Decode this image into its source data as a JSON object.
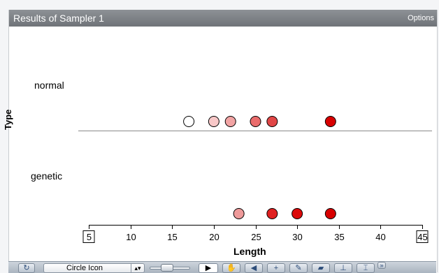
{
  "window": {
    "title": "Results of Sampler 1",
    "options_label": "Options"
  },
  "chart_data": {
    "type": "scatter",
    "xlabel": "Length",
    "ylabel": "Type",
    "categories": [
      "normal",
      "genetic"
    ],
    "xlim": [
      5,
      45
    ],
    "x_ticks": [
      5,
      10,
      15,
      20,
      25,
      30,
      35,
      40,
      45
    ],
    "grid": false,
    "series": [
      {
        "values": [
          17,
          20,
          22,
          25,
          27,
          34
        ],
        "colors": [
          "#ffffff",
          "#f8c8c8",
          "#f2a4a4",
          "#ea6c6c",
          "#e14646",
          "#d80000"
        ]
      },
      {
        "values": [
          23,
          27,
          30,
          34
        ],
        "colors": [
          "#ee9a9a",
          "#e02020",
          "#dc0a0a",
          "#d80000"
        ]
      }
    ]
  },
  "toolbar": {
    "rerandomize_icon": "rerandomize-icon",
    "selected_icon": "Circle Icon",
    "overflow_icon": "chevron-double-right-icon",
    "tools": [
      "pointer-icon",
      "hand-icon",
      "eraser-icon",
      "add-case-icon",
      "pencil-icon",
      "shape-icon",
      "ruler-icon",
      "bracket-icon"
    ]
  }
}
